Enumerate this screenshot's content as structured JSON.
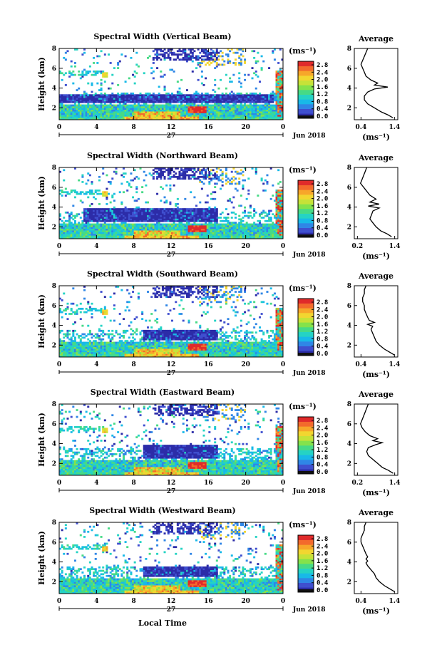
{
  "colormap": [
    "#2c2ca8",
    "#3f4fcf",
    "#2f86e6",
    "#18b9e8",
    "#25d3c4",
    "#46da86",
    "#84e24b",
    "#c6e238",
    "#f2d630",
    "#f7a62a",
    "#f36a2c",
    "#e02a2a"
  ],
  "colorbar": {
    "unit": "(ms⁻¹)",
    "tick_labels": [
      "2.8",
      "2.4",
      "2.0",
      "1.6",
      "1.2",
      "0.8",
      "0.4",
      "0.0"
    ],
    "range": [
      0.0,
      2.8
    ]
  },
  "xaxis": {
    "label": "Local Time",
    "tick_labels": [
      "0",
      "4",
      "8",
      "12",
      "16",
      "20",
      "0"
    ],
    "day_label": "27",
    "month_label": "Jun 2018",
    "range_hours": [
      0,
      24
    ]
  },
  "yaxis": {
    "label": "Height (km)",
    "tick_labels": [
      "2",
      "4",
      "6",
      "8"
    ],
    "range_km": [
      0.8,
      8.0
    ]
  },
  "average_panel": {
    "title": "Average",
    "xlabel": "(ms⁻¹)",
    "ytick_labels": [
      "2",
      "4",
      "6",
      "8"
    ]
  },
  "chart_data": [
    {
      "type": "heatmap",
      "title": "Spectral Width (Vertical Beam)",
      "average_xticks": [
        "0.4",
        "1.4"
      ],
      "average_xlim": [
        0.2,
        1.5
      ],
      "average_profile": {
        "height_km": [
          1.0,
          1.3,
          1.6,
          2.0,
          2.4,
          2.8,
          3.2,
          3.6,
          3.9,
          4.1,
          4.3,
          4.5,
          4.8,
          5.2,
          5.6,
          6.0,
          6.4,
          6.8,
          7.2,
          7.6,
          8.0
        ],
        "width_ms": [
          1.35,
          1.2,
          1.0,
          0.8,
          0.6,
          0.5,
          0.5,
          0.6,
          0.8,
          1.2,
          0.8,
          0.9,
          0.7,
          0.55,
          0.5,
          0.45,
          0.4,
          0.45,
          0.5,
          0.55,
          0.6
        ]
      }
    },
    {
      "type": "heatmap",
      "title": "Spectral Width (Northward Beam)",
      "average_xticks": [
        "0.2",
        "1.4"
      ],
      "average_xlim": [
        0.1,
        1.5
      ],
      "average_profile": {
        "height_km": [
          1.0,
          1.3,
          1.6,
          2.0,
          2.4,
          2.8,
          3.2,
          3.6,
          3.9,
          4.1,
          4.3,
          4.5,
          4.8,
          5.2,
          5.6,
          6.0,
          6.4,
          6.8,
          7.2,
          7.6,
          8.0
        ],
        "width_ms": [
          1.3,
          1.15,
          0.95,
          0.8,
          0.7,
          0.6,
          0.65,
          0.7,
          0.9,
          0.55,
          0.9,
          0.6,
          0.8,
          0.6,
          0.5,
          0.4,
          0.3,
          0.35,
          0.4,
          0.45,
          0.5
        ]
      }
    },
    {
      "type": "heatmap",
      "title": "Spectral Width (Southward Beam)",
      "average_xticks": [
        "0.4",
        "1.4"
      ],
      "average_xlim": [
        0.2,
        1.5
      ],
      "average_profile": {
        "height_km": [
          1.0,
          1.3,
          1.6,
          2.0,
          2.4,
          2.8,
          3.2,
          3.6,
          3.9,
          4.1,
          4.3,
          4.5,
          4.8,
          5.2,
          5.6,
          6.0,
          6.4,
          6.8,
          7.2,
          7.6,
          8.0
        ],
        "width_ms": [
          1.4,
          1.25,
          1.1,
          0.95,
          0.85,
          0.8,
          0.75,
          0.7,
          0.75,
          0.6,
          0.8,
          0.65,
          0.6,
          0.55,
          0.5,
          0.5,
          0.45,
          0.45,
          0.5,
          0.5,
          0.55
        ]
      }
    },
    {
      "type": "heatmap",
      "title": "Spectral Width (Eastward Beam)",
      "average_xticks": [
        "0.2",
        "1.4"
      ],
      "average_xlim": [
        0.1,
        1.5
      ],
      "average_profile": {
        "height_km": [
          1.0,
          1.3,
          1.6,
          2.0,
          2.4,
          2.8,
          3.2,
          3.6,
          3.9,
          4.1,
          4.3,
          4.5,
          4.8,
          5.2,
          5.6,
          6.0,
          6.4,
          6.8,
          7.2,
          7.6,
          8.0
        ],
        "width_ms": [
          1.35,
          1.2,
          1.0,
          0.85,
          0.7,
          0.55,
          0.5,
          0.55,
          0.8,
          1.0,
          0.7,
          0.85,
          0.6,
          0.45,
          0.35,
          0.3,
          0.35,
          0.4,
          0.45,
          0.5,
          0.55
        ]
      }
    },
    {
      "type": "heatmap",
      "title": "Spectral Width (Westward Beam)",
      "average_xticks": [
        "0.4",
        "1.4"
      ],
      "average_xlim": [
        0.2,
        1.5
      ],
      "average_profile": {
        "height_km": [
          1.0,
          1.3,
          1.6,
          2.0,
          2.4,
          2.8,
          3.2,
          3.6,
          3.9,
          4.1,
          4.3,
          4.5,
          4.8,
          5.2,
          5.6,
          6.0,
          6.4,
          6.8,
          7.2,
          7.6,
          8.0
        ],
        "width_ms": [
          1.4,
          1.25,
          1.1,
          0.95,
          0.85,
          0.8,
          0.7,
          0.6,
          0.55,
          0.6,
          0.55,
          0.6,
          0.55,
          0.5,
          0.45,
          0.4,
          0.4,
          0.45,
          0.5,
          0.5,
          0.55
        ]
      }
    }
  ]
}
